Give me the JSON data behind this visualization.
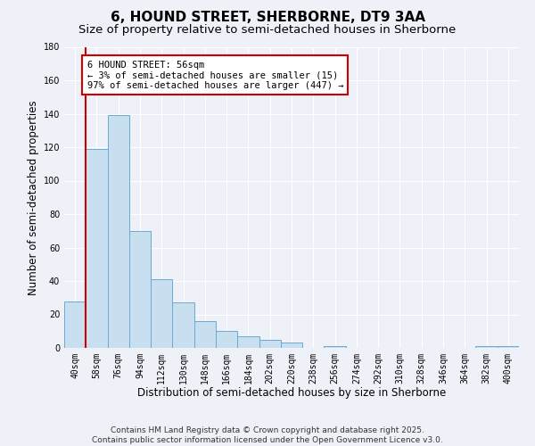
{
  "title": "6, HOUND STREET, SHERBORNE, DT9 3AA",
  "subtitle": "Size of property relative to semi-detached houses in Sherborne",
  "xlabel": "Distribution of semi-detached houses by size in Sherborne",
  "ylabel": "Number of semi-detached properties",
  "categories": [
    "40sqm",
    "58sqm",
    "76sqm",
    "94sqm",
    "112sqm",
    "130sqm",
    "148sqm",
    "166sqm",
    "184sqm",
    "202sqm",
    "220sqm",
    "238sqm",
    "256sqm",
    "274sqm",
    "292sqm",
    "310sqm",
    "328sqm",
    "346sqm",
    "364sqm",
    "382sqm",
    "400sqm"
  ],
  "values": [
    28,
    119,
    139,
    70,
    41,
    27,
    16,
    10,
    7,
    5,
    3,
    0,
    1,
    0,
    0,
    0,
    0,
    0,
    0,
    1,
    1
  ],
  "bar_color": "#c8dff0",
  "bar_edge_color": "#6aaad4",
  "annotation_line1": "6 HOUND STREET: 56sqm",
  "annotation_line2": "← 3% of semi-detached houses are smaller (15)",
  "annotation_line3": "97% of semi-detached houses are larger (447) →",
  "annotation_box_color": "#ffffff",
  "annotation_box_edge_color": "#cc0000",
  "marker_line_color": "#cc0000",
  "ylim": [
    0,
    180
  ],
  "yticks": [
    0,
    20,
    40,
    60,
    80,
    100,
    120,
    140,
    160,
    180
  ],
  "footnote": "Contains HM Land Registry data © Crown copyright and database right 2025.\nContains public sector information licensed under the Open Government Licence v3.0.",
  "background_color": "#eef2f8",
  "grid_color": "#ffffff",
  "title_fontsize": 11,
  "subtitle_fontsize": 9.5,
  "axis_label_fontsize": 8.5,
  "tick_fontsize": 7,
  "annotation_fontsize": 7.5,
  "footnote_fontsize": 6.5
}
